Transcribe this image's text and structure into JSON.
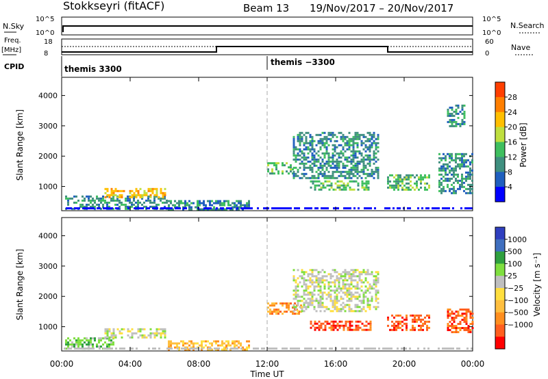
{
  "header": {
    "radar_title": "Stokkseyri (fitACF)",
    "beam_label": "Beam 13",
    "date_range": "19/Nov/2017 – 20/Nov/2017"
  },
  "noise_panel": {
    "left_label": "N.Sky",
    "right_label": "N.Search",
    "left_ticks": [
      "10^5",
      "10^0"
    ],
    "right_ticks": [
      "10^5",
      "10^0"
    ]
  },
  "freq_panel": {
    "left_label_top": "Freq.",
    "left_label_bottom": "[MHz]",
    "right_label": "Nave",
    "left_ticks": [
      "18",
      "8"
    ],
    "right_ticks": [
      "60",
      "0"
    ]
  },
  "cpid": {
    "label": "CPID",
    "segments": [
      "themis 3300",
      "themis −3300"
    ]
  },
  "colors": {
    "power_scale": [
      "#0000ff",
      "#1f5fbf",
      "#3f8f7f",
      "#3fbf5f",
      "#bfdf3f",
      "#ffbf00",
      "#ff7f00",
      "#ff3f00"
    ],
    "velocity_scale": [
      "#2f3fbf",
      "#3f6fbf",
      "#2fa03f",
      "#7fdf3f",
      "#bfbfbf",
      "#ffdf3f",
      "#ffbf3f",
      "#ff8f1f",
      "#ff5f1f",
      "#ff0000"
    ]
  },
  "chart_data": [
    {
      "type": "heatmap",
      "name": "power",
      "ylabel": "Slant Range [km]",
      "yticks": [
        "1000",
        "2000",
        "3000",
        "4000"
      ],
      "ylim": [
        200,
        4600
      ],
      "xlim_hours": [
        0,
        24
      ],
      "colorbar_label": "Power [dB]",
      "colorbar_ticks": [
        "4",
        "8",
        "12",
        "16",
        "20",
        "24",
        "28"
      ],
      "regions": [
        {
          "t0": 0.2,
          "t1": 6.1,
          "r0": 250,
          "r1": 700,
          "level": 2
        },
        {
          "t0": 2.5,
          "t1": 6.1,
          "r0": 650,
          "r1": 950,
          "level": 5
        },
        {
          "t0": 6.2,
          "t1": 11.0,
          "r0": 250,
          "r1": 550,
          "level": 2
        },
        {
          "t0": 12.0,
          "t1": 13.5,
          "r0": 1400,
          "r1": 1800,
          "level": 3
        },
        {
          "t0": 13.5,
          "t1": 18.5,
          "r0": 1300,
          "r1": 2800,
          "level": 2
        },
        {
          "t0": 14.5,
          "t1": 18.0,
          "r0": 900,
          "r1": 1200,
          "level": 3
        },
        {
          "t0": 19.0,
          "t1": 21.5,
          "r0": 900,
          "r1": 1400,
          "level": 3
        },
        {
          "t0": 22.0,
          "t1": 24.0,
          "r0": 800,
          "r1": 2100,
          "level": 2
        },
        {
          "t0": 22.5,
          "t1": 23.5,
          "r0": 3000,
          "r1": 3700,
          "level": 2
        }
      ]
    },
    {
      "type": "heatmap",
      "name": "velocity",
      "ylabel": "Slant Range [km]",
      "yticks": [
        "1000",
        "2000",
        "3000",
        "4000"
      ],
      "ylim": [
        200,
        4600
      ],
      "xlim_hours": [
        0,
        24
      ],
      "xlabel": "Time UT",
      "xticks": [
        "00:00",
        "04:00",
        "08:00",
        "12:00",
        "16:00",
        "20:00",
        "00:00"
      ],
      "colorbar_label": "Velocity [m s⁻¹]",
      "colorbar_ticks": [
        "1000",
        "500",
        "100",
        "25",
        "−25",
        "−100",
        "−500",
        "−1000"
      ],
      "regions": [
        {
          "t0": 0.2,
          "t1": 3.0,
          "r0": 250,
          "r1": 650,
          "level": 3
        },
        {
          "t0": 2.5,
          "t1": 6.1,
          "r0": 650,
          "r1": 950,
          "level": 4
        },
        {
          "t0": 6.2,
          "t1": 11.0,
          "r0": 250,
          "r1": 550,
          "level": 6
        },
        {
          "t0": 12.0,
          "t1": 14.0,
          "r0": 1400,
          "r1": 1800,
          "level": 7
        },
        {
          "t0": 13.5,
          "t1": 18.5,
          "r0": 1500,
          "r1": 2900,
          "level": 4
        },
        {
          "t0": 14.5,
          "t1": 18.0,
          "r0": 900,
          "r1": 1200,
          "level": 8
        },
        {
          "t0": 19.0,
          "t1": 21.5,
          "r0": 900,
          "r1": 1400,
          "level": 8
        },
        {
          "t0": 22.5,
          "t1": 24.0,
          "r0": 800,
          "r1": 1600,
          "level": 8
        }
      ]
    }
  ]
}
